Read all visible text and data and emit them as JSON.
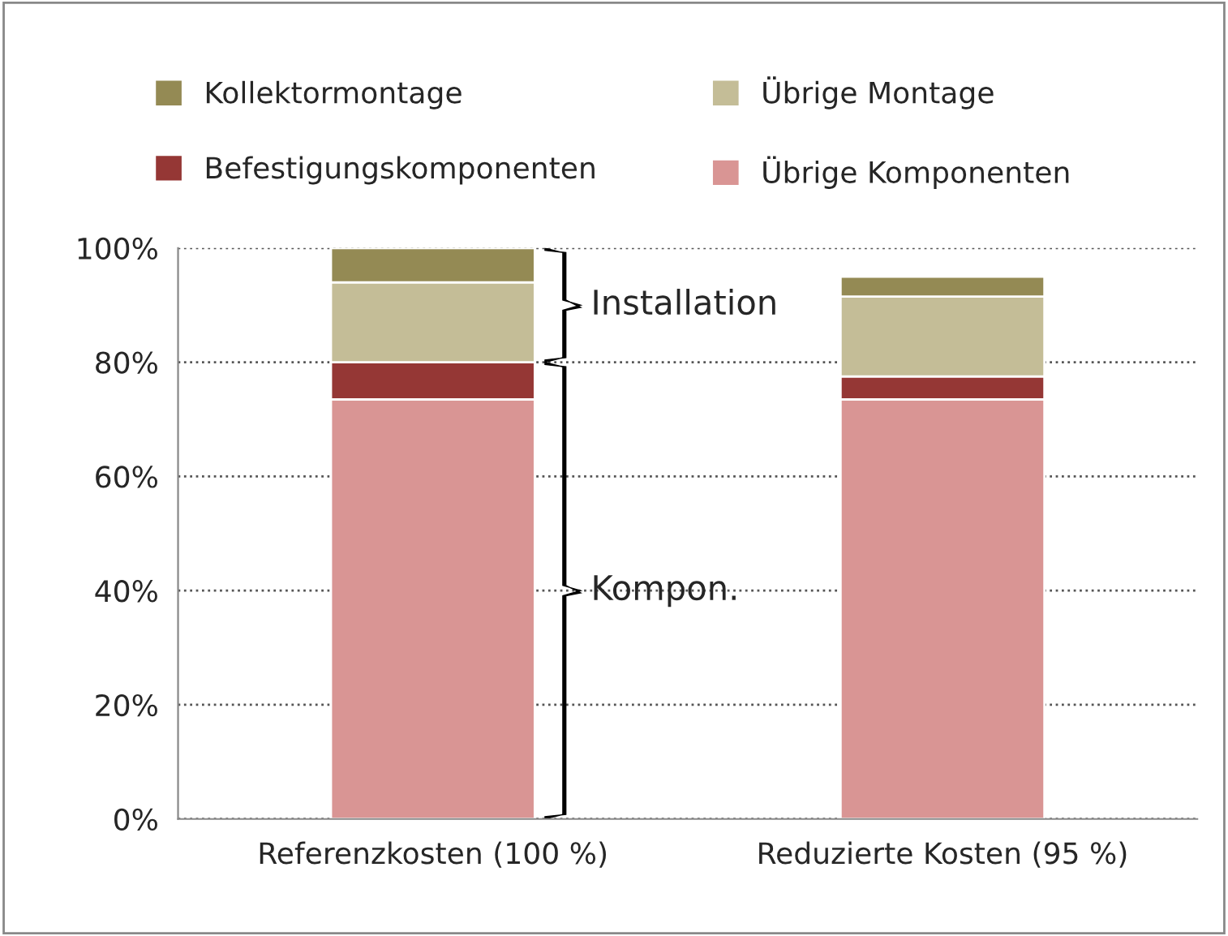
{
  "chart_data": {
    "type": "bar",
    "stacked": true,
    "categories": [
      "Referenzkosten (100 %)",
      "Reduzierte Kosten (95 %)"
    ],
    "series": [
      {
        "name": "Übrige Komponenten",
        "color": "#d99594",
        "values": [
          73.5,
          73.5
        ]
      },
      {
        "name": "Befestigungskomponenten",
        "color": "#953735",
        "values": [
          6.5,
          4
        ]
      },
      {
        "name": "Übrige Montage",
        "color": "#c4bd97",
        "values": [
          14,
          14
        ]
      },
      {
        "name": "Kollektormontage",
        "color": "#948a54",
        "values": [
          6,
          3.5
        ]
      }
    ],
    "ylim": [
      0,
      100
    ],
    "yticks": [
      {
        "value": 0,
        "label": "0%"
      },
      {
        "value": 20,
        "label": "20%"
      },
      {
        "value": 40,
        "label": "40%"
      },
      {
        "value": 60,
        "label": "60%"
      },
      {
        "value": 80,
        "label": "80%"
      },
      {
        "value": 100,
        "label": "100%"
      }
    ],
    "grid": "y",
    "legend": "top",
    "annotations": [
      "Installation",
      "Kompon."
    ]
  }
}
